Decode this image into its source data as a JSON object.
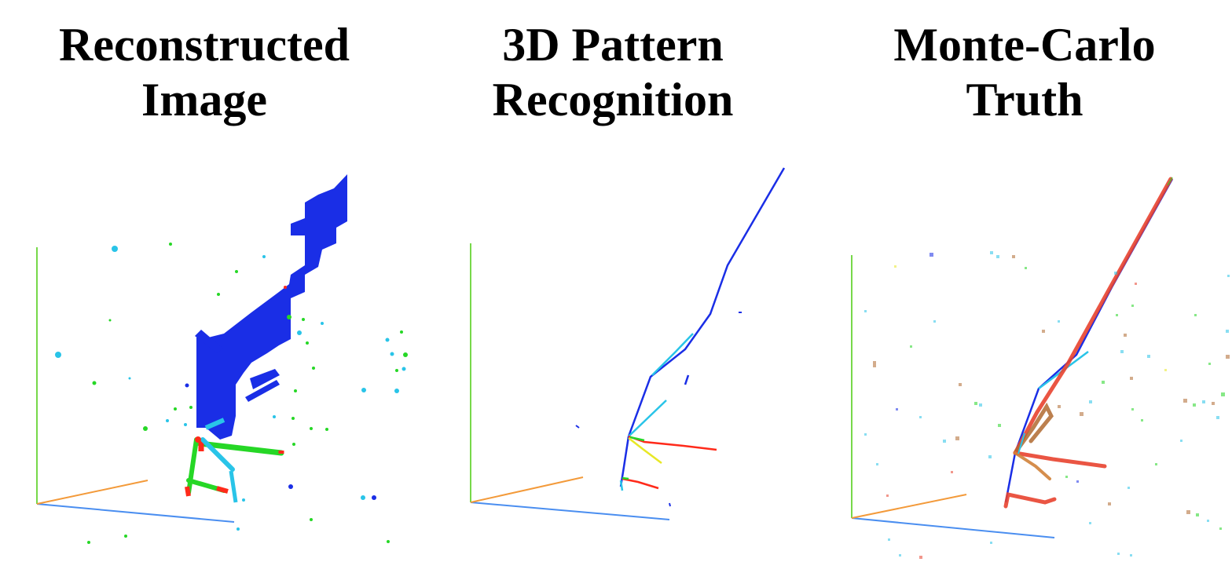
{
  "panels": [
    {
      "title_line1": "Reconstructed",
      "title_line2": "Image"
    },
    {
      "title_line1": "3D Pattern",
      "title_line2": "Recognition"
    },
    {
      "title_line1": "Monte-Carlo",
      "title_line2": "Truth"
    }
  ],
  "colors": {
    "axis_x": "#4a8ef0",
    "axis_y": "#77d84a",
    "axis_z": "#f39a3a",
    "track_primary": "#1a2ee6",
    "track_secondary": "#ff2a1a",
    "track_tertiary": "#26d726",
    "track_cyan": "#29c4e8",
    "track_yellow": "#e8e826"
  }
}
